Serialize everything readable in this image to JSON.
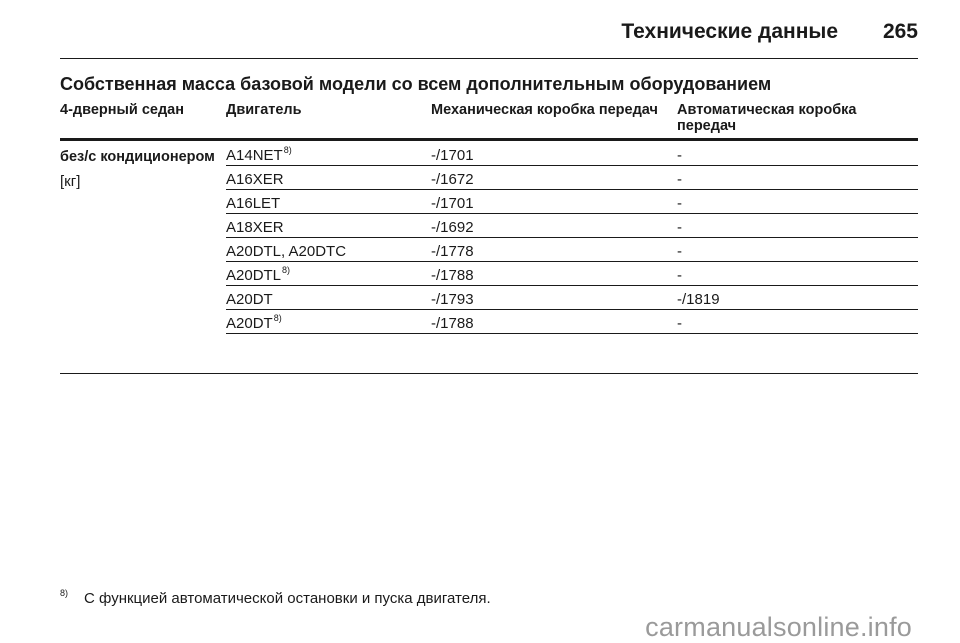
{
  "header": {
    "title": "Технические данные",
    "page_number": "265"
  },
  "section_title": "Собственная масса базовой модели со всем дополнительным оборудованием",
  "table": {
    "columns": [
      "4-дверный седан",
      "Двигатель",
      "Механическая коробка передач",
      "Автоматическая коробка передач"
    ],
    "side_label_bold": "без/с кондиционером",
    "side_label_unit": "[кг]",
    "rows": [
      {
        "engine": "A14NET",
        "note": "8)",
        "manual": "-/1701",
        "auto": "-"
      },
      {
        "engine": "A16XER",
        "note": "",
        "manual": "-/1672",
        "auto": "-"
      },
      {
        "engine": "A16LET",
        "note": "",
        "manual": "-/1701",
        "auto": "-"
      },
      {
        "engine": "A18XER",
        "note": "",
        "manual": "-/1692",
        "auto": "-"
      },
      {
        "engine": "A20DTL, A20DTC",
        "note": "",
        "manual": "-/1778",
        "auto": "-"
      },
      {
        "engine": "A20DTL",
        "note": "8)",
        "manual": "-/1788",
        "auto": "-"
      },
      {
        "engine": "A20DT",
        "note": "",
        "manual": "-/1793",
        "auto": "-/1819"
      },
      {
        "engine": "A20DT",
        "note": "8)",
        "manual": "-/1788",
        "auto": "-"
      }
    ]
  },
  "footnote": {
    "mark": "8)",
    "text": "С функцией автоматической остановки и пуска двигателя."
  },
  "watermark": "carmanualsonline.info"
}
